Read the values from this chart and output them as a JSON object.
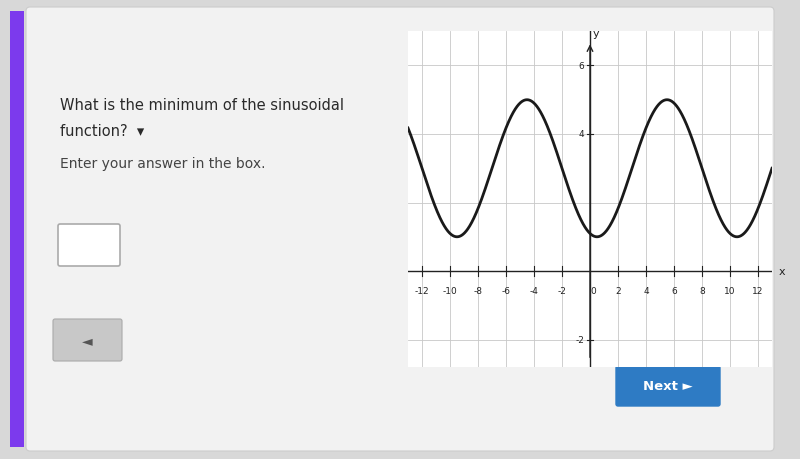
{
  "bg_color": "#d8d8d8",
  "card_color": "#f2f2f2",
  "question_text_line1": "What is the minimum of the sinusoidal",
  "question_text_line2": "function?",
  "sub_text": "Enter your answer in the box.",
  "next_button_color": "#2e7bc4",
  "next_button_text": "Next ►",
  "graph_xlim": [
    -13,
    13
  ],
  "graph_ylim": [
    -2.8,
    7.0
  ],
  "graph_xticks": [
    -12,
    -10,
    -8,
    -6,
    -4,
    -2,
    0,
    2,
    4,
    6,
    8,
    10,
    12
  ],
  "graph_yticks_labeled": [
    -2,
    4,
    6
  ],
  "amplitude": 2,
  "midline": 3,
  "period": 10,
  "phase_shift": -7,
  "curve_color": "#1a1a1a",
  "grid_color": "#c8c8c8",
  "axis_color": "#222222",
  "purple_bar_color": "#7c3aed",
  "tick_fontsize": 6.5
}
